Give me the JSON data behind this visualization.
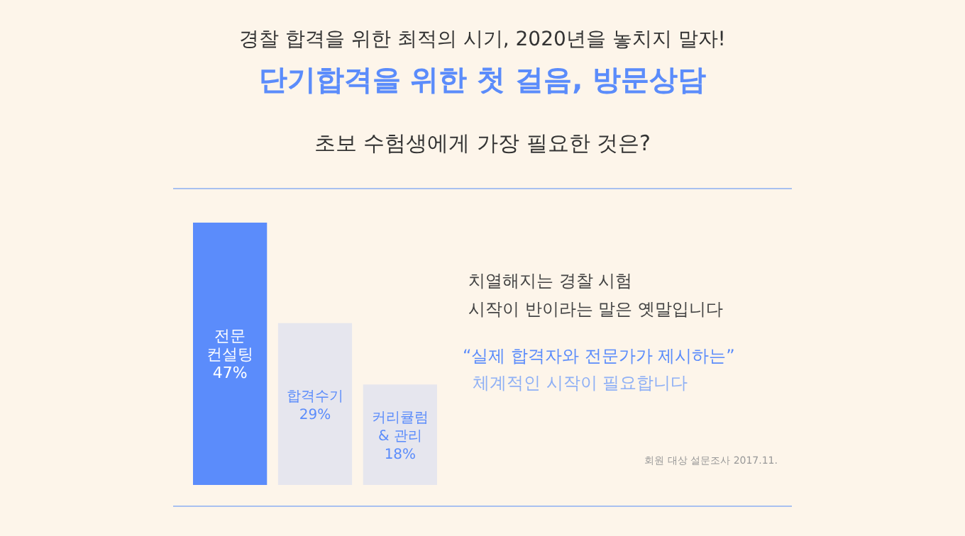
{
  "chart_data": {
    "type": "bar",
    "title": "경찰 합격을 위한 최적의 시기, 2020년을 놓치지 말자!",
    "subtitle": "단기합격을 위한 첫 걸음, 방문상담",
    "categories": [
      "전문 컨설팅",
      "합격수기",
      "커리큘럼 & 관리"
    ],
    "values": [
      47,
      29,
      18
    ],
    "colors": [
      "#5b8cfb",
      "#e6e6ee",
      "#e6e6ee"
    ],
    "value_labels": [
      "47%",
      "29%",
      "18%"
    ],
    "annotations": [
      "초보 수험생에게 가장 필요한 것은?",
      "치열해지는 경찰 시험",
      "시작이 반이라는 말은 옛말입니다",
      "“실제 합격자와 전문가가 제시하는”",
      "체계적인 시작이 필요합니다",
      "회원 대상 설문조사 2017.11."
    ]
  }
}
